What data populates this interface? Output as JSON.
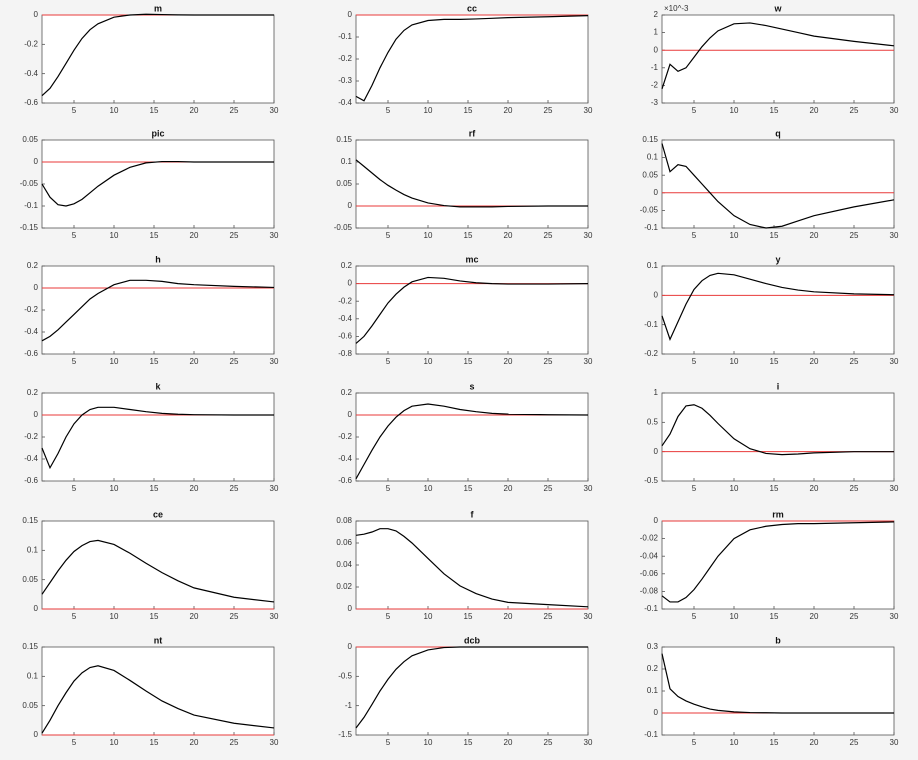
{
  "chart_data": [
    {
      "type": "line",
      "title": "m",
      "x": [
        1,
        2,
        3,
        4,
        5,
        6,
        7,
        8,
        10,
        12,
        14,
        16,
        18,
        20,
        25,
        30
      ],
      "values": [
        -0.55,
        -0.5,
        -0.42,
        -0.33,
        -0.24,
        -0.16,
        -0.1,
        -0.06,
        -0.015,
        0,
        0.005,
        0.003,
        0.001,
        0,
        0,
        0
      ],
      "color": "#000000",
      "xlim": [
        1,
        30
      ],
      "xticks": [
        5,
        10,
        15,
        20,
        25,
        30
      ],
      "ylim": [
        -0.6,
        0
      ],
      "yticks": [
        -0.6,
        -0.4,
        -0.2,
        0
      ],
      "reference_line": {
        "value": 0,
        "color": "#e83a3a"
      }
    },
    {
      "type": "line",
      "title": "cc",
      "x": [
        1,
        2,
        3,
        4,
        5,
        6,
        7,
        8,
        10,
        12,
        14,
        16,
        18,
        20,
        25,
        30
      ],
      "values": [
        -0.37,
        -0.39,
        -0.32,
        -0.24,
        -0.17,
        -0.11,
        -0.07,
        -0.045,
        -0.025,
        -0.02,
        -0.02,
        -0.018,
        -0.015,
        -0.012,
        -0.008,
        -0.003
      ],
      "color": "#000000",
      "xlim": [
        1,
        30
      ],
      "xticks": [
        5,
        10,
        15,
        20,
        25,
        30
      ],
      "ylim": [
        -0.4,
        0
      ],
      "yticks": [
        -0.4,
        -0.3,
        -0.2,
        -0.1,
        0
      ],
      "reference_line": {
        "value": 0,
        "color": "#e83a3a"
      }
    },
    {
      "type": "line",
      "title": "w",
      "y_multiplier_label": "×10^-3",
      "x": [
        1,
        2,
        3,
        4,
        5,
        6,
        7,
        8,
        10,
        12,
        14,
        16,
        18,
        20,
        25,
        30
      ],
      "values": [
        -2.2,
        -0.8,
        -1.2,
        -1.0,
        -0.4,
        0.2,
        0.7,
        1.1,
        1.5,
        1.55,
        1.4,
        1.2,
        1.0,
        0.8,
        0.5,
        0.25
      ],
      "color": "#000000",
      "xlim": [
        1,
        30
      ],
      "xticks": [
        5,
        10,
        15,
        20,
        25,
        30
      ],
      "ylim": [
        -3,
        2
      ],
      "yticks": [
        -3,
        -2,
        -1,
        0,
        1,
        2
      ],
      "reference_line": {
        "value": 0,
        "color": "#e83a3a"
      }
    },
    {
      "type": "line",
      "title": "pic",
      "x": [
        1,
        2,
        3,
        4,
        5,
        6,
        7,
        8,
        10,
        12,
        14,
        16,
        18,
        20,
        25,
        30
      ],
      "values": [
        -0.05,
        -0.08,
        -0.097,
        -0.1,
        -0.095,
        -0.085,
        -0.07,
        -0.055,
        -0.03,
        -0.012,
        -0.002,
        0.001,
        0.001,
        0,
        0,
        0
      ],
      "color": "#000000",
      "xlim": [
        1,
        30
      ],
      "xticks": [
        5,
        10,
        15,
        20,
        25,
        30
      ],
      "ylim": [
        -0.15,
        0.05
      ],
      "yticks": [
        -0.15,
        -0.1,
        -0.05,
        0,
        0.05
      ],
      "reference_line": {
        "value": 0,
        "color": "#e83a3a"
      }
    },
    {
      "type": "line",
      "title": "rf",
      "x": [
        1,
        2,
        3,
        4,
        5,
        6,
        7,
        8,
        10,
        12,
        14,
        16,
        18,
        20,
        25,
        30
      ],
      "values": [
        0.105,
        0.09,
        0.075,
        0.06,
        0.047,
        0.036,
        0.026,
        0.018,
        0.007,
        0.001,
        -0.002,
        -0.002,
        -0.002,
        -0.001,
        0,
        0
      ],
      "color": "#000000",
      "xlim": [
        1,
        30
      ],
      "xticks": [
        5,
        10,
        15,
        20,
        25,
        30
      ],
      "ylim": [
        -0.05,
        0.15
      ],
      "yticks": [
        -0.05,
        0,
        0.05,
        0.1,
        0.15
      ],
      "reference_line": {
        "value": 0,
        "color": "#e83a3a"
      }
    },
    {
      "type": "line",
      "title": "q",
      "x": [
        1,
        2,
        3,
        4,
        5,
        6,
        7,
        8,
        10,
        12,
        14,
        16,
        18,
        20,
        25,
        30
      ],
      "values": [
        0.14,
        0.06,
        0.08,
        0.075,
        0.05,
        0.025,
        0,
        -0.025,
        -0.065,
        -0.09,
        -0.1,
        -0.095,
        -0.08,
        -0.065,
        -0.04,
        -0.02
      ],
      "color": "#000000",
      "xlim": [
        1,
        30
      ],
      "xticks": [
        5,
        10,
        15,
        20,
        25,
        30
      ],
      "ylim": [
        -0.1,
        0.15
      ],
      "yticks": [
        -0.1,
        -0.05,
        0,
        0.05,
        0.1,
        0.15
      ],
      "reference_line": {
        "value": 0,
        "color": "#e83a3a"
      }
    },
    {
      "type": "line",
      "title": "h",
      "x": [
        1,
        2,
        3,
        4,
        5,
        6,
        7,
        8,
        10,
        12,
        14,
        16,
        18,
        20,
        25,
        30
      ],
      "values": [
        -0.48,
        -0.44,
        -0.38,
        -0.31,
        -0.24,
        -0.17,
        -0.1,
        -0.05,
        0.03,
        0.07,
        0.07,
        0.06,
        0.04,
        0.03,
        0.015,
        0.005
      ],
      "color": "#000000",
      "xlim": [
        1,
        30
      ],
      "xticks": [
        5,
        10,
        15,
        20,
        25,
        30
      ],
      "ylim": [
        -0.6,
        0.2
      ],
      "yticks": [
        -0.6,
        -0.4,
        -0.2,
        0,
        0.2
      ],
      "reference_line": {
        "value": 0,
        "color": "#e83a3a"
      }
    },
    {
      "type": "line",
      "title": "mc",
      "x": [
        1,
        2,
        3,
        4,
        5,
        6,
        7,
        8,
        10,
        12,
        14,
        16,
        18,
        20,
        25,
        30
      ],
      "values": [
        -0.68,
        -0.6,
        -0.48,
        -0.35,
        -0.22,
        -0.12,
        -0.04,
        0.02,
        0.07,
        0.06,
        0.03,
        0.01,
        0,
        -0.005,
        -0.005,
        0
      ],
      "color": "#000000",
      "xlim": [
        1,
        30
      ],
      "xticks": [
        5,
        10,
        15,
        20,
        25,
        30
      ],
      "ylim": [
        -0.8,
        0.2
      ],
      "yticks": [
        -0.8,
        -0.6,
        -0.4,
        -0.2,
        0,
        0.2
      ],
      "reference_line": {
        "value": 0,
        "color": "#e83a3a"
      }
    },
    {
      "type": "line",
      "title": "y",
      "x": [
        1,
        2,
        3,
        4,
        5,
        6,
        7,
        8,
        10,
        12,
        14,
        16,
        18,
        20,
        25,
        30
      ],
      "values": [
        -0.07,
        -0.15,
        -0.09,
        -0.03,
        0.02,
        0.05,
        0.068,
        0.075,
        0.07,
        0.055,
        0.04,
        0.027,
        0.018,
        0.012,
        0.005,
        0.002
      ],
      "color": "#000000",
      "xlim": [
        1,
        30
      ],
      "xticks": [
        5,
        10,
        15,
        20,
        25,
        30
      ],
      "ylim": [
        -0.2,
        0.1
      ],
      "yticks": [
        -0.2,
        -0.1,
        0,
        0.1
      ],
      "reference_line": {
        "value": 0,
        "color": "#e83a3a"
      }
    },
    {
      "type": "line",
      "title": "k",
      "x": [
        1,
        2,
        3,
        4,
        5,
        6,
        7,
        8,
        10,
        12,
        14,
        16,
        18,
        20,
        25,
        30
      ],
      "values": [
        -0.3,
        -0.48,
        -0.35,
        -0.2,
        -0.08,
        0,
        0.05,
        0.07,
        0.07,
        0.05,
        0.03,
        0.015,
        0.007,
        0.003,
        0,
        0
      ],
      "color": "#000000",
      "xlim": [
        1,
        30
      ],
      "xticks": [
        5,
        10,
        15,
        20,
        25,
        30
      ],
      "ylim": [
        -0.6,
        0.2
      ],
      "yticks": [
        -0.6,
        -0.4,
        -0.2,
        0,
        0.2
      ],
      "reference_line": {
        "value": 0,
        "color": "#e83a3a"
      }
    },
    {
      "type": "line",
      "title": "s",
      "x": [
        1,
        2,
        3,
        4,
        5,
        6,
        7,
        8,
        10,
        12,
        14,
        16,
        18,
        20,
        25,
        30
      ],
      "values": [
        -0.58,
        -0.45,
        -0.32,
        -0.2,
        -0.1,
        -0.02,
        0.04,
        0.08,
        0.1,
        0.08,
        0.05,
        0.03,
        0.015,
        0.008,
        0.002,
        0
      ],
      "color": "#000000",
      "xlim": [
        1,
        30
      ],
      "xticks": [
        5,
        10,
        15,
        20,
        25,
        30
      ],
      "ylim": [
        -0.6,
        0.2
      ],
      "yticks": [
        -0.6,
        -0.4,
        -0.2,
        0,
        0.2
      ],
      "reference_line": {
        "value": 0,
        "color": "#e83a3a"
      }
    },
    {
      "type": "line",
      "title": "i",
      "x": [
        1,
        2,
        3,
        4,
        5,
        6,
        7,
        8,
        10,
        12,
        14,
        16,
        18,
        20,
        25,
        30
      ],
      "values": [
        0.1,
        0.3,
        0.6,
        0.78,
        0.8,
        0.74,
        0.62,
        0.48,
        0.22,
        0.05,
        -0.03,
        -0.05,
        -0.04,
        -0.02,
        0,
        0
      ],
      "color": "#000000",
      "xlim": [
        1,
        30
      ],
      "xticks": [
        5,
        10,
        15,
        20,
        25,
        30
      ],
      "ylim": [
        -0.5,
        1
      ],
      "yticks": [
        -0.5,
        0,
        0.5,
        1
      ],
      "reference_line": {
        "value": 0,
        "color": "#e83a3a"
      }
    },
    {
      "type": "line",
      "title": "ce",
      "x": [
        1,
        2,
        3,
        4,
        5,
        6,
        7,
        8,
        10,
        12,
        14,
        16,
        18,
        20,
        25,
        30
      ],
      "values": [
        0.025,
        0.045,
        0.065,
        0.083,
        0.098,
        0.108,
        0.115,
        0.117,
        0.11,
        0.095,
        0.078,
        0.062,
        0.048,
        0.036,
        0.02,
        0.012
      ],
      "color": "#000000",
      "xlim": [
        1,
        30
      ],
      "xticks": [
        5,
        10,
        15,
        20,
        25,
        30
      ],
      "ylim": [
        0,
        0.15
      ],
      "yticks": [
        0,
        0.05,
        0.1,
        0.15
      ],
      "reference_line": {
        "value": 0,
        "color": "#e83a3a"
      }
    },
    {
      "type": "line",
      "title": "f",
      "x": [
        1,
        2,
        3,
        4,
        5,
        6,
        7,
        8,
        10,
        12,
        14,
        16,
        18,
        20,
        25,
        30
      ],
      "values": [
        0.067,
        0.068,
        0.07,
        0.073,
        0.073,
        0.071,
        0.066,
        0.06,
        0.046,
        0.032,
        0.021,
        0.014,
        0.009,
        0.006,
        0.004,
        0.002
      ],
      "color": "#000000",
      "xlim": [
        1,
        30
      ],
      "xticks": [
        5,
        10,
        15,
        20,
        25,
        30
      ],
      "ylim": [
        0,
        0.08
      ],
      "yticks": [
        0,
        0.02,
        0.04,
        0.06,
        0.08
      ],
      "reference_line": {
        "value": 0,
        "color": "#e83a3a"
      }
    },
    {
      "type": "line",
      "title": "rm",
      "x": [
        1,
        2,
        3,
        4,
        5,
        6,
        7,
        8,
        10,
        12,
        14,
        16,
        18,
        20,
        25,
        30
      ],
      "values": [
        -0.085,
        -0.092,
        -0.092,
        -0.087,
        -0.078,
        -0.066,
        -0.053,
        -0.04,
        -0.02,
        -0.01,
        -0.006,
        -0.004,
        -0.003,
        -0.003,
        -0.002,
        -0.001
      ],
      "color": "#000000",
      "xlim": [
        1,
        30
      ],
      "xticks": [
        5,
        10,
        15,
        20,
        25,
        30
      ],
      "ylim": [
        -0.1,
        0
      ],
      "yticks": [
        -0.1,
        -0.08,
        -0.06,
        -0.04,
        -0.02,
        0
      ],
      "reference_line": {
        "value": 0,
        "color": "#e83a3a"
      }
    },
    {
      "type": "line",
      "title": "nt",
      "x": [
        1,
        2,
        3,
        4,
        5,
        6,
        7,
        8,
        10,
        12,
        14,
        16,
        18,
        20,
        25,
        30
      ],
      "values": [
        0.003,
        0.025,
        0.05,
        0.072,
        0.092,
        0.106,
        0.115,
        0.118,
        0.11,
        0.093,
        0.075,
        0.058,
        0.045,
        0.034,
        0.02,
        0.012
      ],
      "color": "#000000",
      "xlim": [
        1,
        30
      ],
      "xticks": [
        5,
        10,
        15,
        20,
        25,
        30
      ],
      "ylim": [
        0,
        0.15
      ],
      "yticks": [
        0,
        0.05,
        0.1,
        0.15
      ],
      "reference_line": {
        "value": 0,
        "color": "#e83a3a"
      }
    },
    {
      "type": "line",
      "title": "dcb",
      "x": [
        1,
        2,
        3,
        4,
        5,
        6,
        7,
        8,
        10,
        12,
        14,
        16,
        18,
        20,
        25,
        30
      ],
      "values": [
        -1.38,
        -1.2,
        -0.98,
        -0.75,
        -0.55,
        -0.38,
        -0.25,
        -0.15,
        -0.05,
        -0.01,
        0,
        0,
        0,
        0,
        0,
        0
      ],
      "color": "#000000",
      "xlim": [
        1,
        30
      ],
      "xticks": [
        5,
        10,
        15,
        20,
        25,
        30
      ],
      "ylim": [
        -1.5,
        0
      ],
      "yticks": [
        -1.5,
        -1,
        -0.5,
        0
      ],
      "reference_line": {
        "value": 0,
        "color": "#e83a3a"
      }
    },
    {
      "type": "line",
      "title": "b",
      "x": [
        1,
        2,
        3,
        4,
        5,
        6,
        7,
        8,
        10,
        12,
        14,
        16,
        18,
        20,
        25,
        30
      ],
      "values": [
        0.27,
        0.11,
        0.075,
        0.055,
        0.04,
        0.028,
        0.018,
        0.012,
        0.005,
        0.002,
        0.001,
        0,
        0,
        0,
        0,
        0
      ],
      "color": "#000000",
      "xlim": [
        1,
        30
      ],
      "xticks": [
        5,
        10,
        15,
        20,
        25,
        30
      ],
      "ylim": [
        -0.1,
        0.3
      ],
      "yticks": [
        -0.1,
        0,
        0.1,
        0.2,
        0.3
      ],
      "reference_line": {
        "value": 0,
        "color": "#e83a3a"
      }
    }
  ]
}
